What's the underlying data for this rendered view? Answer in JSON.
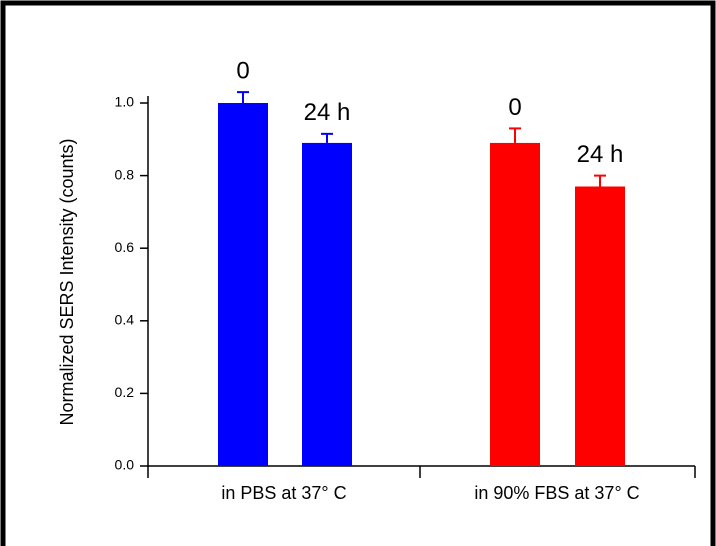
{
  "chart_data": {
    "type": "bar",
    "y_label": "Normalized SERS Intensity (counts)",
    "categories": [
      "in PBS at 37° C",
      "in 90% FBS at 37° C"
    ],
    "bars": [
      {
        "group": 0,
        "label": "0",
        "color": "#0000ff",
        "value": 1.0,
        "error": 0.03
      },
      {
        "group": 0,
        "label": "24 h",
        "color": "#0000ff",
        "value": 0.89,
        "error": 0.025
      },
      {
        "group": 1,
        "label": "0",
        "color": "#ff0000",
        "value": 0.89,
        "error": 0.04
      },
      {
        "group": 1,
        "label": "24 h",
        "color": "#ff0000",
        "value": 0.77,
        "error": 0.03
      }
    ],
    "ylim": [
      0,
      1.0
    ],
    "yticks": [
      {
        "value": 0,
        "label": "0.0"
      },
      0.2,
      0.4,
      0.6,
      0.8,
      {
        "value": 1.0,
        "label": "1.0"
      }
    ]
  }
}
